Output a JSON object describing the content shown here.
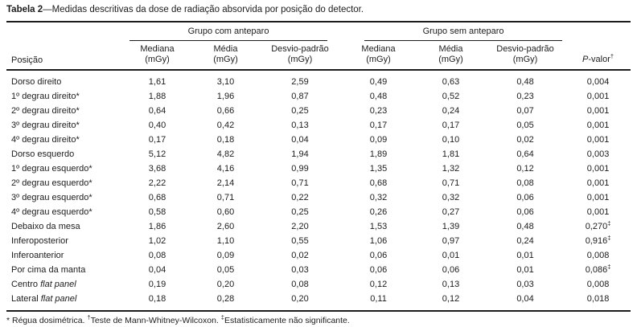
{
  "title": {
    "bold": "Tabela 2",
    "rest": "—Medidas descritivas da dose de radiação absorvida por posição do detector."
  },
  "table": {
    "position_header": "Posição",
    "groups": [
      {
        "label": "Grupo com anteparo"
      },
      {
        "label": "Grupo sem anteparo"
      }
    ],
    "sub_headers": {
      "com_mediana": "Mediana\n(mGy)",
      "com_media": "Média\n(mGy)",
      "com_desvio": "Desvio-padrão\n(mGy)",
      "sem_mediana": "Mediana\n(mGy)",
      "sem_media": "Média\n(mGy)",
      "sem_desvio": "Desvio-padrão\n(mGy)"
    },
    "p_header": {
      "italic": "P",
      "rest": "-valor",
      "sup": "†"
    },
    "rows": [
      {
        "position": "Dorso direito",
        "position_italic": "",
        "com_mediana": "1,61",
        "com_media": "3,10",
        "com_desvio": "2,59",
        "sem_mediana": "0,49",
        "sem_media": "0,63",
        "sem_desvio": "0,48",
        "p": "0,004",
        "p_sup": ""
      },
      {
        "position": "1º degrau direito*",
        "position_italic": "",
        "com_mediana": "1,88",
        "com_media": "1,96",
        "com_desvio": "0,87",
        "sem_mediana": "0,48",
        "sem_media": "0,52",
        "sem_desvio": "0,23",
        "p": "0,001",
        "p_sup": ""
      },
      {
        "position": "2º degrau direito*",
        "position_italic": "",
        "com_mediana": "0,64",
        "com_media": "0,66",
        "com_desvio": "0,25",
        "sem_mediana": "0,23",
        "sem_media": "0,24",
        "sem_desvio": "0,07",
        "p": "0,001",
        "p_sup": ""
      },
      {
        "position": "3º degrau direito*",
        "position_italic": "",
        "com_mediana": "0,40",
        "com_media": "0,42",
        "com_desvio": "0,13",
        "sem_mediana": "0,17",
        "sem_media": "0,17",
        "sem_desvio": "0,05",
        "p": "0,001",
        "p_sup": ""
      },
      {
        "position": "4º degrau direito*",
        "position_italic": "",
        "com_mediana": "0,17",
        "com_media": "0,18",
        "com_desvio": "0,04",
        "sem_mediana": "0,09",
        "sem_media": "0,10",
        "sem_desvio": "0,02",
        "p": "0,001",
        "p_sup": ""
      },
      {
        "position": "Dorso esquerdo",
        "position_italic": "",
        "com_mediana": "5,12",
        "com_media": "4,82",
        "com_desvio": "1,94",
        "sem_mediana": "1,89",
        "sem_media": "1,81",
        "sem_desvio": "0,64",
        "p": "0,003",
        "p_sup": ""
      },
      {
        "position": "1º degrau esquerdo*",
        "position_italic": "",
        "com_mediana": "3,68",
        "com_media": "4,16",
        "com_desvio": "0,99",
        "sem_mediana": "1,35",
        "sem_media": "1,32",
        "sem_desvio": "0,12",
        "p": "0,001",
        "p_sup": ""
      },
      {
        "position": "2º degrau esquerdo*",
        "position_italic": "",
        "com_mediana": "2,22",
        "com_media": "2,14",
        "com_desvio": "0,71",
        "sem_mediana": "0,68",
        "sem_media": "0,71",
        "sem_desvio": "0,08",
        "p": "0,001",
        "p_sup": ""
      },
      {
        "position": "3º degrau esquerdo*",
        "position_italic": "",
        "com_mediana": "0,68",
        "com_media": "0,71",
        "com_desvio": "0,22",
        "sem_mediana": "0,32",
        "sem_media": "0,32",
        "sem_desvio": "0,06",
        "p": "0,001",
        "p_sup": ""
      },
      {
        "position": "4º degrau esquerdo*",
        "position_italic": "",
        "com_mediana": "0,58",
        "com_media": "0,60",
        "com_desvio": "0,25",
        "sem_mediana": "0,26",
        "sem_media": "0,27",
        "sem_desvio": "0,06",
        "p": "0,001",
        "p_sup": ""
      },
      {
        "position": "Debaixo da mesa",
        "position_italic": "",
        "com_mediana": "1,86",
        "com_media": "2,60",
        "com_desvio": "2,20",
        "sem_mediana": "1,53",
        "sem_media": "1,39",
        "sem_desvio": "0,48",
        "p": "0,270",
        "p_sup": "‡"
      },
      {
        "position": "Inferoposterior",
        "position_italic": "",
        "com_mediana": "1,02",
        "com_media": "1,10",
        "com_desvio": "0,55",
        "sem_mediana": "1,06",
        "sem_media": "0,97",
        "sem_desvio": "0,24",
        "p": "0,916",
        "p_sup": "‡"
      },
      {
        "position": "Inferoanterior",
        "position_italic": "",
        "com_mediana": "0,08",
        "com_media": "0,09",
        "com_desvio": "0,02",
        "sem_mediana": "0,06",
        "sem_media": "0,01",
        "sem_desvio": "0,01",
        "p": "0,008",
        "p_sup": ""
      },
      {
        "position": "Por cima da manta",
        "position_italic": "",
        "com_mediana": "0,04",
        "com_media": "0,05",
        "com_desvio": "0,03",
        "sem_mediana": "0,06",
        "sem_media": "0,06",
        "sem_desvio": "0,01",
        "p": "0,086",
        "p_sup": "‡"
      },
      {
        "position": "Centro ",
        "position_italic": "flat panel",
        "com_mediana": "0,19",
        "com_media": "0,20",
        "com_desvio": "0,08",
        "sem_mediana": "0,12",
        "sem_media": "0,13",
        "sem_desvio": "0,03",
        "p": "0,008",
        "p_sup": ""
      },
      {
        "position": "Lateral ",
        "position_italic": "flat panel",
        "com_mediana": "0,18",
        "com_media": "0,28",
        "com_desvio": "0,20",
        "sem_mediana": "0,11",
        "sem_media": "0,12",
        "sem_desvio": "0,04",
        "p": "0,018",
        "p_sup": ""
      }
    ]
  },
  "footnote": {
    "part1": "* Régua dosimétrica. ",
    "sup1": "†",
    "part2": "Teste de Mann-Whitney-Wilcoxon. ",
    "sup2": "‡",
    "part3": "Estatisticamente não significante."
  },
  "colors": {
    "text": "#1c1c1c",
    "background": "#ffffff",
    "rule": "#1c1c1c"
  }
}
